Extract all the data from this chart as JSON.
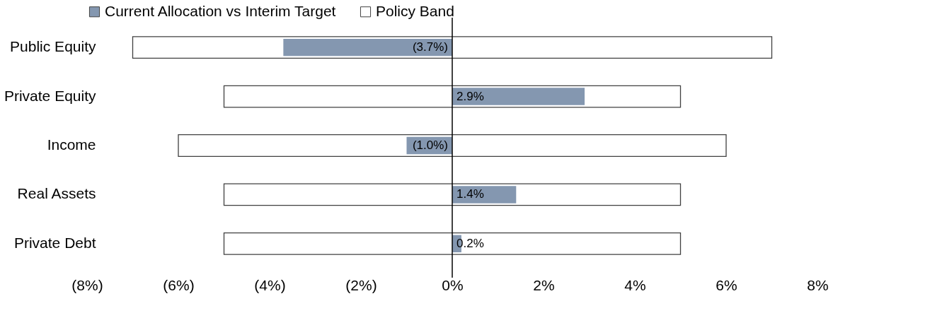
{
  "chart_data": {
    "type": "bar",
    "orientation": "horizontal",
    "categories": [
      "Public Equity",
      "Private Equity",
      "Income",
      "Real Assets",
      "Private Debt"
    ],
    "series": [
      {
        "name": "Current Allocation vs Interim Target",
        "color": "#8497b0",
        "values": [
          -3.7,
          2.9,
          -1.0,
          1.4,
          0.2
        ],
        "value_labels": [
          "(3.7%)",
          "2.9%",
          "(1.0%)",
          "1.4%",
          "0.2%"
        ]
      },
      {
        "name": "Policy Band",
        "color": "#ffffff",
        "base": [
          -7,
          -5,
          -6,
          -5,
          -5
        ],
        "values": [
          14,
          10,
          12,
          10,
          10
        ]
      }
    ],
    "xlim": [
      -8,
      8
    ],
    "xticks": [
      {
        "value": -8,
        "label": "(8%)"
      },
      {
        "value": -6,
        "label": "(6%)"
      },
      {
        "value": -4,
        "label": "(4%)"
      },
      {
        "value": -2,
        "label": "(2%)"
      },
      {
        "value": 0,
        "label": "0%"
      },
      {
        "value": 2,
        "label": "2%"
      },
      {
        "value": 4,
        "label": "4%"
      },
      {
        "value": 6,
        "label": "6%"
      },
      {
        "value": 8,
        "label": "8%"
      }
    ],
    "ref_lines": [
      {
        "axis": "x",
        "value": 0,
        "color": "#000000"
      }
    ],
    "legend": "top",
    "grid": false
  }
}
